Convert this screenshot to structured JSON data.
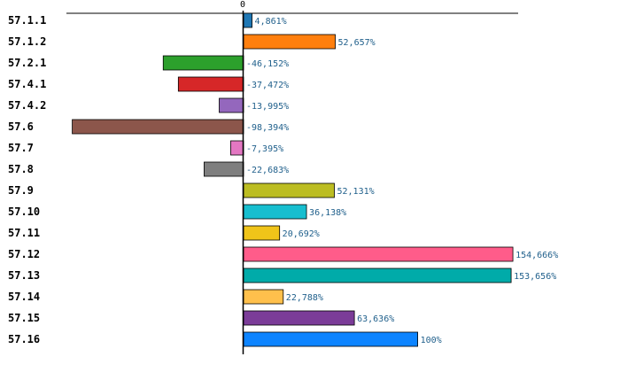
{
  "chart_data": {
    "type": "bar",
    "orientation": "horizontal",
    "title": "",
    "xlabel": "",
    "ylabel": "",
    "xlim": [
      -98.394,
      154.666
    ],
    "zero_label": "0",
    "grid": false,
    "categories": [
      "57.1.1",
      "57.1.2",
      "57.2.1",
      "57.4.1",
      "57.4.2",
      "57.6",
      "57.7",
      "57.8",
      "57.9",
      "57.10",
      "57.11",
      "57.12",
      "57.13",
      "57.14",
      "57.15",
      "57.16"
    ],
    "values": [
      4.861,
      52.657,
      -46.152,
      -37.472,
      -13.995,
      -98.394,
      -7.395,
      -22.683,
      52.131,
      36.138,
      20.692,
      154.666,
      153.656,
      22.788,
      63.636,
      100
    ],
    "value_labels": [
      "4,861%",
      "52,657%",
      "-46,152%",
      "-37,472%",
      "-13,995%",
      "-98,394%",
      "-7,395%",
      "-22,683%",
      "52,131%",
      "36,138%",
      "20,692%",
      "154,666%",
      "153,656%",
      "22,788%",
      "63,636%",
      "100%"
    ],
    "colors": [
      "#1f77b4",
      "#ff7f0e",
      "#2ca02c",
      "#d62728",
      "#9467bd",
      "#8c564b",
      "#e377c2",
      "#7f7f7f",
      "#bcbd22",
      "#17becf",
      "#f0c419",
      "#ff5c8a",
      "#00aba9",
      "#ffc04c",
      "#7b3c98",
      "#0d84ff"
    ]
  }
}
